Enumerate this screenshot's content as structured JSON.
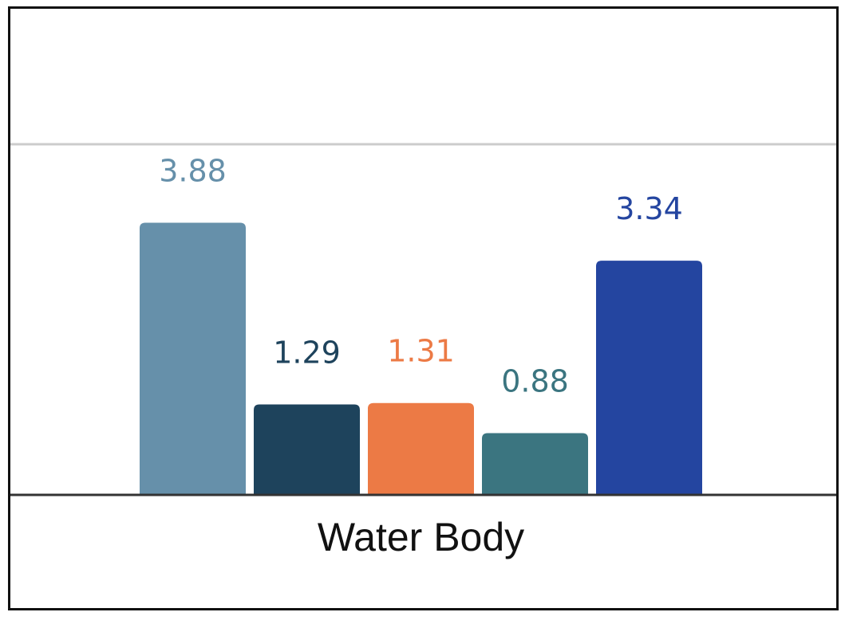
{
  "chart_data": {
    "type": "bar",
    "categories": [
      "Water Body"
    ],
    "series": [
      {
        "values": [
          3.88
        ],
        "color": "#6690aa"
      },
      {
        "values": [
          1.29
        ],
        "color": "#1e435c"
      },
      {
        "values": [
          1.31
        ],
        "color": "#ec7a45"
      },
      {
        "values": [
          0.88
        ],
        "color": "#3b7580"
      },
      {
        "values": [
          3.34
        ],
        "color": "#2445a0"
      }
    ],
    "data_labels": [
      "3.88",
      "1.29",
      "1.31",
      "0.88",
      "3.34"
    ],
    "ylim": [
      0,
      5
    ],
    "gridline_values": [
      5
    ],
    "title": "",
    "xlabel": "",
    "ylabel": "",
    "legend": "none",
    "grid": true
  }
}
